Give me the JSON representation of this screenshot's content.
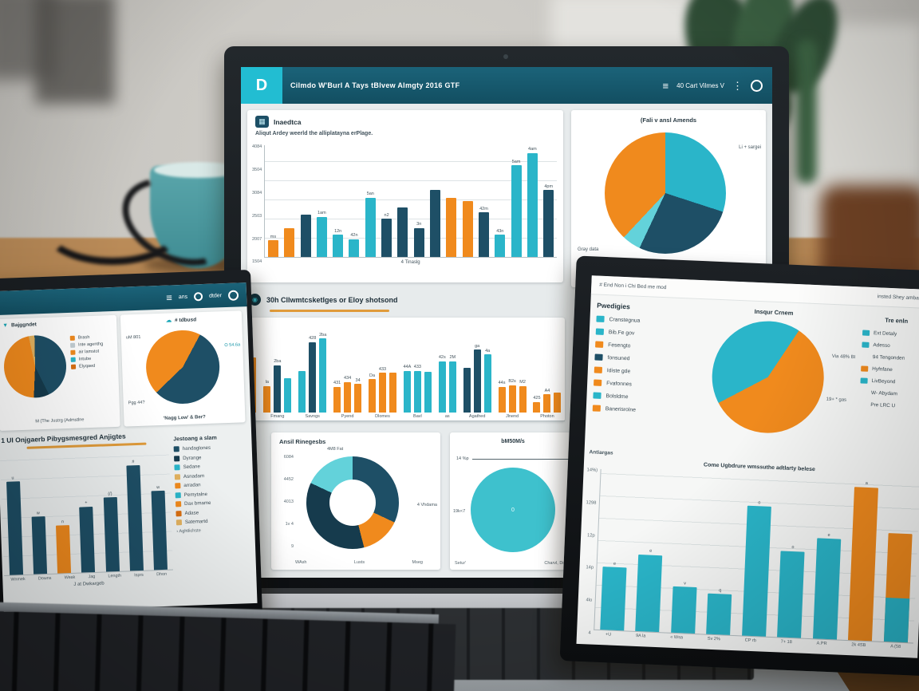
{
  "palette": {
    "orange": "#f08a1d",
    "orangedark": "#d96f12",
    "tan": "#e2b25f",
    "teal": "#2ab5c9",
    "tealdark": "#0f93a5",
    "cyan": "#63d2da",
    "navy": "#1e4f66",
    "navydark": "#163b4d",
    "lightgray": "#c3ced4",
    "tealcircle": "#3ec1cd"
  },
  "center_laptop": {
    "header": {
      "logo": "D",
      "title": "Cilmdo W'Burl A Tays tBlvew Almgty 2016 GTF",
      "menu": "≡",
      "user": "40 Cart Vilmes V",
      "kebab": "⋮"
    },
    "insights_card": {
      "icon": "▦",
      "title": "Inaedtca",
      "subtitle": "Aliqut Ardey weerld the alliplatayna erPlage.",
      "chart": {
        "max": 100,
        "yticks": [
          "4084",
          "3504",
          "3084",
          "2503",
          "2007",
          "1504"
        ],
        "xlabel": "4 Tinaslg",
        "bars": [
          {
            "v": 15,
            "c": "orange",
            "l": "ms"
          },
          {
            "v": 26,
            "c": "orange"
          },
          {
            "v": 38,
            "c": "navy"
          },
          {
            "v": 36,
            "c": "teal",
            "l": "1am"
          },
          {
            "v": 20,
            "c": "teal",
            "l": "12n"
          },
          {
            "v": 16,
            "c": "teal",
            "l": "42n"
          },
          {
            "v": 53,
            "c": "teal",
            "l": "5an"
          },
          {
            "v": 34,
            "c": "navy",
            "l": "n2"
          },
          {
            "v": 44,
            "c": "navy"
          },
          {
            "v": 26,
            "c": "navy",
            "l": "3n"
          },
          {
            "v": 60,
            "c": "navy"
          },
          {
            "v": 53,
            "c": "orange"
          },
          {
            "v": 50,
            "c": "orange"
          },
          {
            "v": 40,
            "c": "navy",
            "l": "42m"
          },
          {
            "v": 20,
            "c": "teal",
            "l": "43n"
          },
          {
            "v": 82,
            "c": "teal",
            "l": "5am"
          },
          {
            "v": 93,
            "c": "teal",
            "l": "4am"
          },
          {
            "v": 60,
            "c": "navy",
            "l": "4pm"
          }
        ]
      }
    },
    "pie_card": {
      "title": "(Fali v ansl Amends",
      "label_right": "Li + sargei",
      "label_left": "Gray data",
      "caption": "# Yes Pinechart, 'O",
      "pie": {
        "start": 0,
        "slices": [
          {
            "pct": 30,
            "c": "teal"
          },
          {
            "pct": 27,
            "c": "navy"
          },
          {
            "pct": 5,
            "c": "cyan"
          },
          {
            "pct": 38,
            "c": "orange"
          }
        ]
      }
    },
    "section": {
      "icon": "◉",
      "title": "30h Cllwmtcsketlges or Eloy shotsond"
    },
    "grouped_chart": {
      "max": 100,
      "groups": [
        {
          "label": "",
          "bars": [
            {
              "v": 58,
              "c": "orange"
            }
          ]
        },
        {
          "label": "Fmang",
          "bars": [
            {
              "v": 28,
              "c": "orange",
              "l": "la"
            },
            {
              "v": 50,
              "c": "navy",
              "l": "2ba"
            },
            {
              "v": 36,
              "c": "teal"
            }
          ]
        },
        {
          "label": "Savngs",
          "bars": [
            {
              "v": 44,
              "c": "teal"
            },
            {
              "v": 74,
              "c": "navy",
              "l": "428"
            },
            {
              "v": 78,
              "c": "teal",
              "l": "2ba"
            }
          ]
        },
        {
          "label": "Pyend",
          "bars": [
            {
              "v": 27,
              "c": "orange",
              "l": "431"
            },
            {
              "v": 32,
              "c": "orange",
              "l": "434"
            },
            {
              "v": 30,
              "c": "orange",
              "l": "34"
            }
          ]
        },
        {
          "label": "Dlomes",
          "bars": [
            {
              "v": 35,
              "c": "orange",
              "l": "Da"
            },
            {
              "v": 42,
              "c": "orange",
              "l": "433"
            },
            {
              "v": 42,
              "c": "orange"
            }
          ]
        },
        {
          "label": "Bavl",
          "bars": [
            {
              "v": 44,
              "c": "teal",
              "l": "44A"
            },
            {
              "v": 44,
              "c": "teal",
              "l": "433"
            },
            {
              "v": 43,
              "c": "teal"
            }
          ]
        },
        {
          "label": "as",
          "bars": [
            {
              "v": 54,
              "c": "teal",
              "l": "42s"
            },
            {
              "v": 54,
              "c": "teal",
              "l": "2M"
            }
          ]
        },
        {
          "label": "Agathed",
          "bars": [
            {
              "v": 47,
              "c": "navy"
            },
            {
              "v": 66,
              "c": "navy",
              "l": "ga"
            },
            {
              "v": 61,
              "c": "teal",
              "l": "4a"
            }
          ]
        },
        {
          "label": "Jlnend",
          "bars": [
            {
              "v": 27,
              "c": "orange",
              "l": "44s"
            },
            {
              "v": 29,
              "c": "orange",
              "l": "B2s"
            },
            {
              "v": 28,
              "c": "orange",
              "l": "M2"
            }
          ]
        },
        {
          "label": "Photon",
          "bars": [
            {
              "v": 11,
              "c": "orange",
              "l": "425"
            },
            {
              "v": 19,
              "c": "orange",
              "l": "A4"
            },
            {
              "v": 21,
              "c": "orange"
            }
          ]
        }
      ]
    },
    "donut_card": {
      "title": "Ansil Rinegesbs",
      "yticks": [
        "6084",
        "4452",
        "4013",
        "1v 4",
        "9"
      ],
      "top_label": "4M8 Fat",
      "side_label": "4 Vhdama",
      "xlabels": [
        "WAsh",
        "Lusts",
        "Mseg"
      ],
      "pie": {
        "start": 0,
        "slices": [
          {
            "pct": 32,
            "c": "navy"
          },
          {
            "pct": 14,
            "c": "orange"
          },
          {
            "pct": 36,
            "c": "navydark"
          },
          {
            "pct": 18,
            "c": "cyan"
          }
        ]
      }
    },
    "circle_card": {
      "title": "bM50M/s",
      "annotation": "14 %p",
      "left_label": "19k<7",
      "center_label": "0",
      "xlabels": [
        "Setur'",
        "Charvl, Doma"
      ],
      "pie": {
        "start": 0,
        "slices": [
          {
            "pct": 100,
            "c": "tealcircle"
          }
        ]
      }
    }
  },
  "left_laptop": {
    "header": {
      "menu": "≡",
      "item1": "ans",
      "item2": "dtder"
    },
    "card1": {
      "icon": "▼",
      "title": "Bajggndet",
      "caption": "M (The Justrg (Admstlne",
      "pie": {
        "start": -10,
        "slices": [
          {
            "pct": 3,
            "c": "tan"
          },
          {
            "pct": 43,
            "c": "navy"
          },
          {
            "pct": 8,
            "c": "navydark"
          },
          {
            "pct": 46,
            "c": "orange"
          }
        ]
      },
      "legend": [
        {
          "c": "orange",
          "label": "Brash"
        },
        {
          "c": "lightgray",
          "label": "Inte agenthg"
        },
        {
          "c": "orange",
          "label": "air lamstot"
        },
        {
          "c": "teal",
          "label": "Intube"
        },
        {
          "c": "orangedark",
          "label": "Elyqaed"
        }
      ]
    },
    "card2": {
      "icon": "☁",
      "title": "# tdbusd",
      "label_tl": "uM 801",
      "label_r": "O 54.6a",
      "label_bl": "Pgg 44?",
      "caption": "'Nagg Low' & Ber?",
      "pie": {
        "start": 30,
        "slices": [
          {
            "pct": 55,
            "c": "navy"
          },
          {
            "pct": 45,
            "c": "orange"
          }
        ]
      }
    },
    "bottom": {
      "title": "1 UI Onjgaerb Pibygsmesgred Anjigtes",
      "caption": "J at Dwkargeb",
      "chart": {
        "max": 100,
        "bars": [
          {
            "v": 78,
            "c": "navy",
            "l": "u"
          },
          {
            "v": 48,
            "c": "navy",
            "l": "w"
          },
          {
            "v": 40,
            "c": "orange",
            "l": "n"
          },
          {
            "v": 55,
            "c": "navy",
            "l": "+"
          },
          {
            "v": 62,
            "c": "navy",
            "l": "(/)"
          },
          {
            "v": 88,
            "c": "navy",
            "l": "#"
          },
          {
            "v": 66,
            "c": "navy",
            "l": "w"
          }
        ],
        "xlabels": [
          "Wnmek",
          "Downs",
          "Weak",
          "Jag",
          "Length",
          "Isprs",
          "Dhon"
        ],
        "xlabel": "J at Dwkargeb"
      },
      "legend_title": "Jestoang a slam",
      "legend": [
        {
          "c": "navy",
          "label": "handaglones"
        },
        {
          "c": "navydark",
          "label": "Dyrange"
        },
        {
          "c": "teal",
          "label": "Sedane"
        },
        {
          "c": "tan",
          "label": "Asnadam"
        },
        {
          "c": "orange",
          "label": "arradan"
        },
        {
          "c": "teal",
          "label": "Pemytalne"
        },
        {
          "c": "orange",
          "label": "Dax bmame"
        },
        {
          "c": "orangedark",
          "label": "Adase"
        },
        {
          "c": "tan",
          "label": "Satemartd"
        }
      ],
      "legend_footer": "› Aghtlichste"
    },
    "bezel_text": "DiLaneca"
  },
  "right_laptop": {
    "topbar": {
      "left": "# End Non i Chi Bed me mod",
      "right": "insted Shey amband"
    },
    "col1": {
      "title": "Pwedigies",
      "legend": [
        {
          "c": "teal",
          "label": "Cranstegnua"
        },
        {
          "c": "teal",
          "label": "Bib.Fe gov"
        },
        {
          "c": "orange",
          "label": "Fesengto"
        },
        {
          "c": "navy",
          "label": "fonsuned"
        },
        {
          "c": "orange",
          "label": "Idiste gde"
        },
        {
          "c": "orange",
          "label": "Fvafonnes"
        },
        {
          "c": "teal",
          "label": "Bolsldme"
        },
        {
          "c": "orange",
          "label": "Banerisrolne"
        }
      ]
    },
    "pie_col": {
      "title": "Insqur Crnem",
      "label_top": "Via 48% BI",
      "label_bottom": "19+ * gas",
      "pie": {
        "start": 240,
        "slices": [
          {
            "pct": 42,
            "c": "teal"
          },
          {
            "pct": 58,
            "c": "orange"
          }
        ]
      }
    },
    "col3": {
      "title": "Tre enln",
      "legend": [
        {
          "c": "teal",
          "label": "Ext Detaly"
        },
        {
          "c": "teal",
          "label": "Adesso"
        },
        {
          "c": "",
          "label": "94 Tengonden"
        },
        {
          "c": "orange",
          "label": "Hyfnfane"
        },
        {
          "c": "teal",
          "label": "LivBeyond"
        },
        {
          "c": "",
          "label": "W- Abydam"
        },
        {
          "c": "",
          "label": "Pre LRC U"
        }
      ]
    },
    "chart_block": {
      "corner_label": "Antiargas",
      "title": "Come Ugbdrure wmssuthe adtlarty belese",
      "chart": {
        "max": 115,
        "yticks": [
          "14%)",
          "1298",
          "12p",
          "14p",
          "4lo",
          "4"
        ],
        "bars": [
          {
            "v": 45,
            "c": "teal",
            "l": "e"
          },
          {
            "v": 55,
            "c": "teal",
            "l": "e"
          },
          {
            "v": 33,
            "c": "teal",
            "l": "v"
          },
          {
            "v": 29,
            "c": "teal",
            "l": "q"
          },
          {
            "v": 93,
            "c": "teal",
            "l": "o"
          },
          {
            "v": 62,
            "c": "teal",
            "l": "o"
          },
          {
            "v": 72,
            "c": "teal",
            "l": "e"
          },
          {
            "v": 110,
            "c": "orange",
            "l": "a"
          },
          {
            "v": 78,
            "c": "orange",
            "c2": "teal",
            "split": 40
          }
        ],
        "xlabels": [
          "+U",
          "9A la",
          "« Wsa",
          "Sv 2%",
          "CP rb",
          "7+ 18",
          "A.PR",
          "2k 4SB",
          "A (58"
        ]
      }
    }
  }
}
